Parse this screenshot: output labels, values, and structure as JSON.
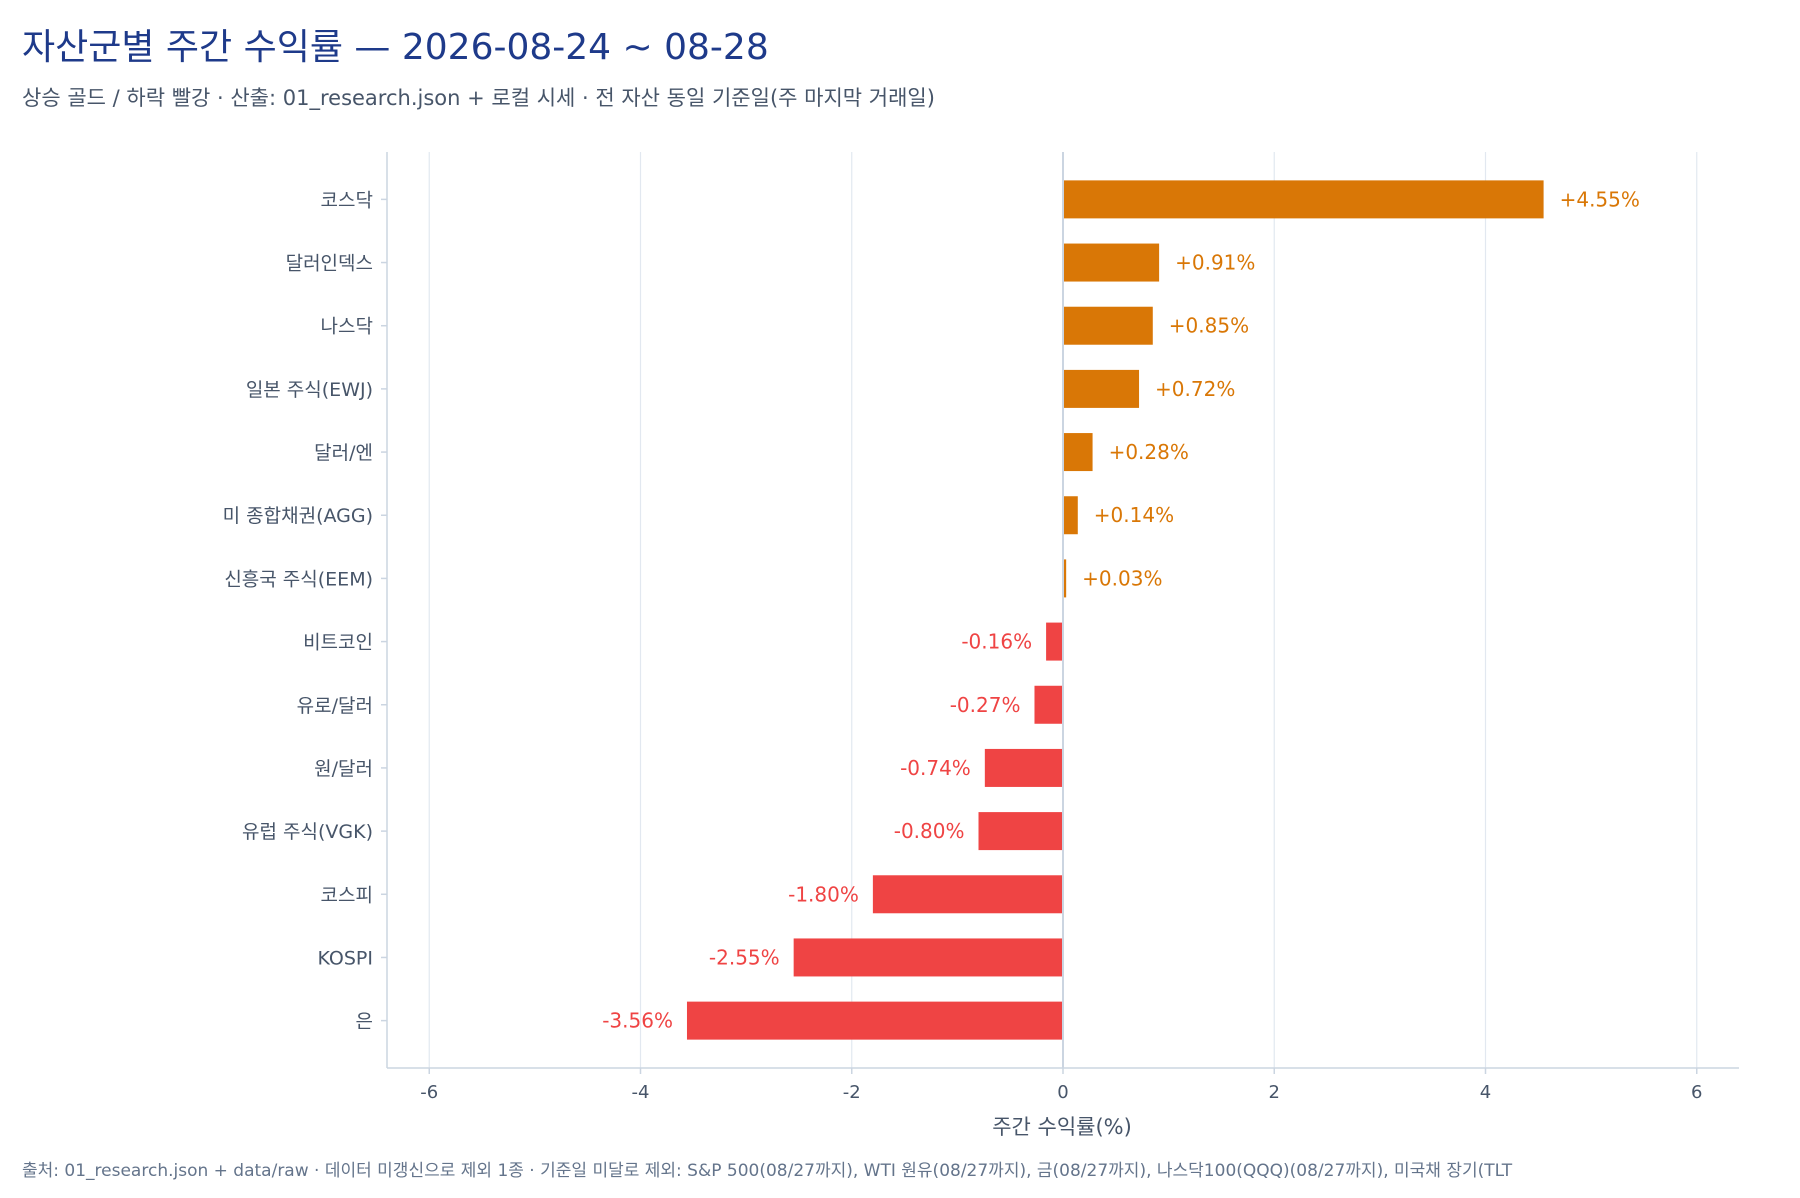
{
  "header": {
    "title": "자산군별 주간 수익률 — 2026-08-24 ~ 08-28",
    "subtitle": "상승 골드 / 하락 빨강 · 산출: 01_research.json + 로컬 시세 · 전 자산 동일 기준일(주 마지막 거래일)"
  },
  "footer": {
    "source": "출처: 01_research.json + data/raw · 데이터 미갱신으로 제외 1종 · 기준일 미달로 제외: S&P 500(08/27까지), WTI 원유(08/27까지), 금(08/27까지), 나스닥100(QQQ)(08/27까지), 미국채 장기(TLT"
  },
  "colors": {
    "up": "#d97706",
    "down": "#ef4444",
    "grid": "#e2e8f0",
    "axis": "#cbd5e1",
    "text": "#475569"
  },
  "chart_data": {
    "type": "bar",
    "orientation": "horizontal",
    "categories": [
      "코스닥",
      "달러인덱스",
      "나스닥",
      "일본 주식(EWJ)",
      "달러/엔",
      "미 종합채권(AGG)",
      "신흥국 주식(EEM)",
      "비트코인",
      "유로/달러",
      "원/달러",
      "유럽 주식(VGK)",
      "코스피",
      "KOSPI",
      "은"
    ],
    "values": [
      4.55,
      0.91,
      0.85,
      0.72,
      0.28,
      0.14,
      0.03,
      -0.16,
      -0.27,
      -0.74,
      -0.8,
      -1.8,
      -2.55,
      -3.56
    ],
    "labels": [
      "+4.55%",
      "+0.91%",
      "+0.85%",
      "+0.72%",
      "+0.28%",
      "+0.14%",
      "+0.03%",
      "-0.16%",
      "-0.27%",
      "-0.74%",
      "-0.80%",
      "-1.80%",
      "-2.55%",
      "-3.56%"
    ],
    "xlabel": "주간 수익률(%)",
    "ylabel": "",
    "xlim": [
      -6.4,
      6.4
    ],
    "xticks": [
      -6,
      -4,
      -2,
      0,
      2,
      4,
      6
    ],
    "xtick_labels": [
      "-6",
      "-4",
      "-2",
      "0",
      "2",
      "4",
      "6"
    ],
    "grid": "vertical",
    "legend": "none"
  }
}
